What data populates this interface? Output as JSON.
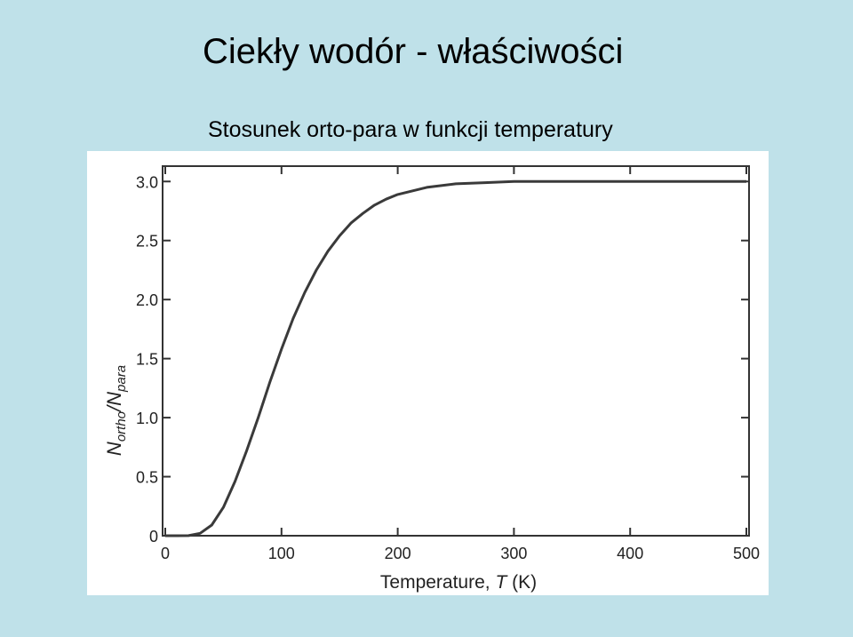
{
  "title": "Ciekły wodór - właściwości",
  "subtitle": "Stosunek orto-para w funkcji temperatury",
  "chart_data": {
    "type": "line",
    "xlabel": [
      "Temperature, ",
      "T",
      " (K)"
    ],
    "ylabel": [
      "N",
      "ortho",
      "/N",
      "para"
    ],
    "x": [
      0,
      10,
      20,
      30,
      40,
      50,
      60,
      70,
      80,
      90,
      100,
      110,
      120,
      130,
      140,
      150,
      160,
      170,
      180,
      190,
      200,
      225,
      250,
      275,
      300,
      350,
      400,
      450,
      500
    ],
    "values": [
      0,
      0,
      0.001,
      0.02,
      0.09,
      0.24,
      0.46,
      0.72,
      1.0,
      1.3,
      1.58,
      1.84,
      2.06,
      2.25,
      2.41,
      2.54,
      2.65,
      2.73,
      2.8,
      2.85,
      2.89,
      2.95,
      2.98,
      2.99,
      3.0,
      3.0,
      3.0,
      3.0,
      3.0
    ],
    "color": "#3a3a3a",
    "xlim": [
      0,
      500
    ],
    "xticks": [
      0,
      100,
      200,
      300,
      400,
      500
    ],
    "ylim": [
      0,
      3.13
    ],
    "yticks": [
      0,
      0.5,
      {
        "value": 1,
        "label": "1.0"
      },
      1.5,
      {
        "value": 2,
        "label": "2.0"
      },
      2.5,
      {
        "value": 3,
        "label": "3.0"
      }
    ]
  }
}
